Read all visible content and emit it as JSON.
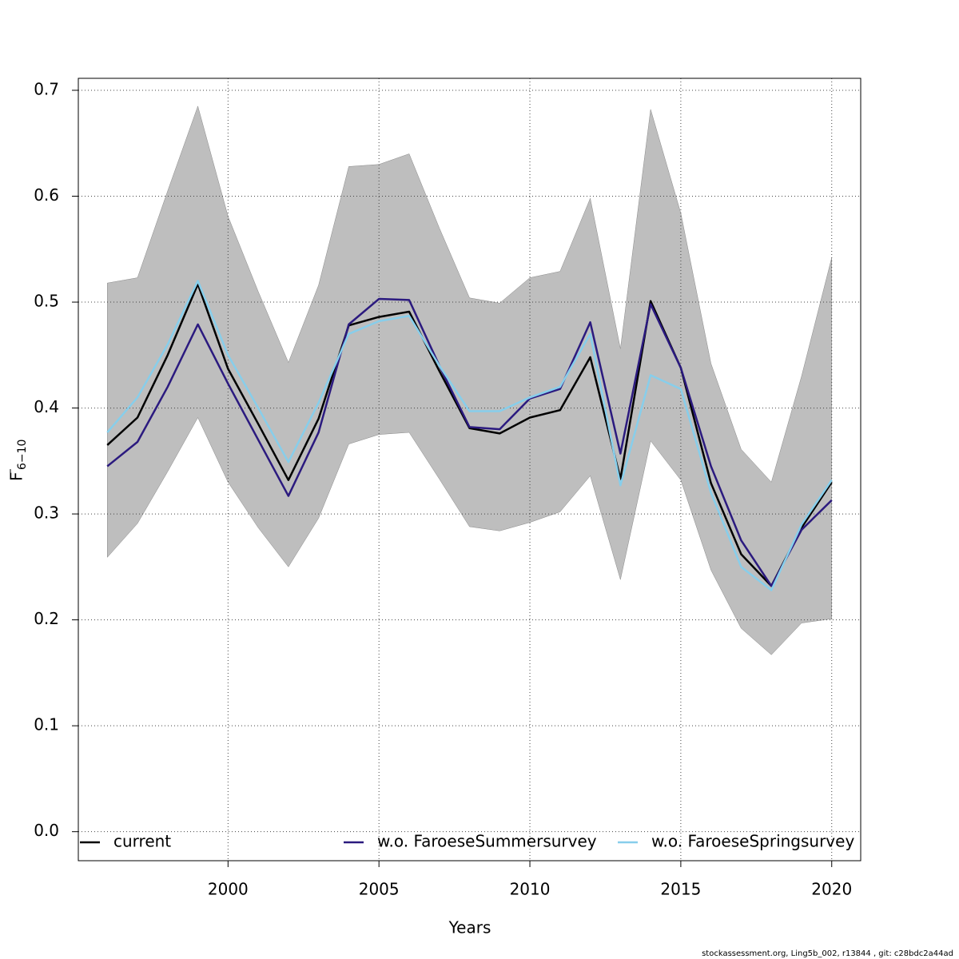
{
  "chart_data": {
    "type": "line",
    "xlabel": "Years",
    "ylabel": {
      "main": "F",
      "sub": "6−10"
    },
    "footer": "stockassessment.org, Ling5b_002, r13844 , git: c28bdc2a44ad",
    "x": [
      1996,
      1997,
      1998,
      1999,
      2000,
      2001,
      2002,
      2003,
      2004,
      2005,
      2006,
      2007,
      2008,
      2009,
      2010,
      2011,
      2012,
      2013,
      2014,
      2015,
      2016,
      2017,
      2018,
      2019,
      2020
    ],
    "band": {
      "color": "#bebebe",
      "upper": [
        0.518,
        0.523,
        0.605,
        0.685,
        0.581,
        0.51,
        0.443,
        0.516,
        0.628,
        0.63,
        0.64,
        0.57,
        0.504,
        0.499,
        0.523,
        0.529,
        0.598,
        0.456,
        0.682,
        0.584,
        0.442,
        0.361,
        0.33,
        0.43,
        0.542
      ],
      "lower": [
        0.259,
        0.291,
        0.34,
        0.391,
        0.33,
        0.287,
        0.25,
        0.296,
        0.366,
        0.375,
        0.377,
        0.333,
        0.288,
        0.284,
        0.292,
        0.302,
        0.336,
        0.238,
        0.369,
        0.332,
        0.247,
        0.192,
        0.167,
        0.197,
        0.201
      ]
    },
    "series": [
      {
        "name": "current",
        "color": "#000000",
        "values": [
          0.365,
          0.391,
          0.45,
          0.517,
          0.437,
          0.385,
          0.332,
          0.39,
          0.478,
          0.486,
          0.491,
          0.435,
          0.381,
          0.376,
          0.391,
          0.398,
          0.448,
          0.333,
          0.501,
          0.438,
          0.329,
          0.262,
          0.232,
          0.287,
          0.33
        ]
      },
      {
        "name": "w.o. FaroeseSummersurvey",
        "color": "#2b1a7f",
        "values": [
          0.345,
          0.368,
          0.42,
          0.479,
          0.423,
          0.37,
          0.317,
          0.377,
          0.479,
          0.503,
          0.502,
          0.44,
          0.382,
          0.38,
          0.409,
          0.418,
          0.481,
          0.357,
          0.498,
          0.438,
          0.345,
          0.275,
          0.232,
          0.285,
          0.313
        ]
      },
      {
        "name": "w.o. FaroeseSpringsurvey",
        "color": "#87ceeb",
        "values": [
          0.377,
          0.41,
          0.46,
          0.52,
          0.45,
          0.4,
          0.349,
          0.405,
          0.47,
          0.482,
          0.487,
          0.44,
          0.397,
          0.397,
          0.41,
          0.42,
          0.47,
          0.327,
          0.431,
          0.418,
          0.32,
          0.25,
          0.228,
          0.29,
          0.332
        ]
      }
    ],
    "xlim": [
      1995.04,
      2020.96
    ],
    "ylim": [
      -0.0274,
      0.7113
    ],
    "xticks": [
      2000,
      2005,
      2010,
      2015,
      2020
    ],
    "yticks": [
      {
        "value": 0,
        "label": "0.0"
      },
      0.1,
      0.2,
      0.3,
      0.4,
      0.5,
      0.6,
      0.7
    ],
    "grid": true,
    "legend": "bottom"
  }
}
